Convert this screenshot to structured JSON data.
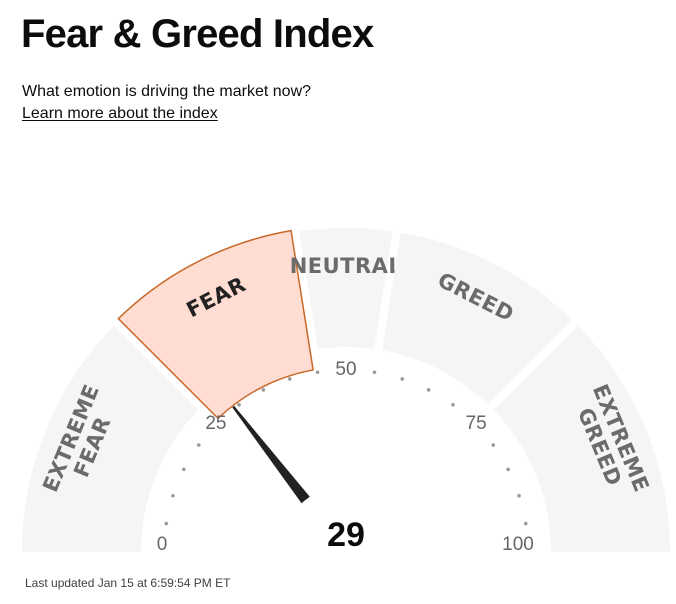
{
  "header": {
    "title": "Fear & Greed Index",
    "subtitle": "What emotion is driving the market now?",
    "learn_more_link": "Learn more about the index"
  },
  "gauge": {
    "value": 29,
    "value_label": "29",
    "min": 0,
    "max": 100,
    "active_zone": "fear",
    "zones": [
      {
        "id": "extreme-fear",
        "lines": [
          "EXTREME",
          "FEAR"
        ],
        "from": 0,
        "to": 25
      },
      {
        "id": "fear",
        "lines": [
          "FEAR"
        ],
        "from": 25,
        "to": 45
      },
      {
        "id": "neutral",
        "lines": [
          "NEUTRAL"
        ],
        "from": 45,
        "to": 55
      },
      {
        "id": "greed",
        "lines": [
          "GREED"
        ],
        "from": 55,
        "to": 75
      },
      {
        "id": "extreme-greed",
        "lines": [
          "EXTREME",
          "GREED"
        ],
        "from": 75,
        "to": 100
      }
    ],
    "tick_labels": [
      "0",
      "25",
      "50",
      "75",
      "100"
    ],
    "colors": {
      "zone_fill": "#f5f5f5",
      "active_fill": "#ffddd2",
      "active_stroke": "#c8682a",
      "inactive_text": "#6b6b6b",
      "active_text": "#222222",
      "needle": "#222222",
      "dots": "#999999"
    }
  },
  "footer": {
    "last_updated": "Last updated Jan 15 at 6:59:54 PM ET"
  }
}
